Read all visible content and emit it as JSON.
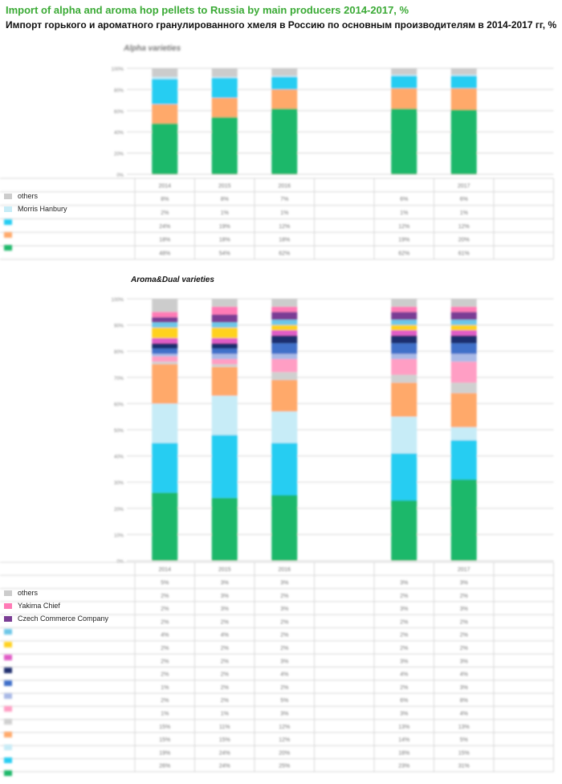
{
  "title_en": "Import of alpha and aroma hop pellets to Russia by main producers 2014-2017, %",
  "title_ru": "Импорт горького и ароматного гранулированного хмеля в Россию по основным производителям в 2014-2017 гг, %",
  "chart_data": [
    {
      "type": "bar",
      "stacked": true,
      "title": "Alpha varieties",
      "categories": [
        "2014",
        "2015",
        "2016",
        "",
        "",
        "2017",
        ""
      ],
      "ylim": [
        0,
        100
      ],
      "yticks": [
        "0%",
        "20%",
        "40%",
        "60%",
        "80%",
        "100%"
      ],
      "series": [
        {
          "name": "BarthHaas Group",
          "color": "#1db86a",
          "values": [
            48,
            54,
            62,
            null,
            62,
            61,
            null
          ]
        },
        {
          "name": "",
          "color": "#ffa96a",
          "values": [
            18,
            18,
            18,
            null,
            19,
            20,
            null
          ]
        },
        {
          "name": "",
          "color": "#25cdf2",
          "values": [
            24,
            19,
            12,
            null,
            12,
            12,
            null
          ]
        },
        {
          "name": "Morris Hanbury",
          "color": "#c7ecf7",
          "values": [
            2,
            1,
            1,
            null,
            1,
            1,
            null
          ]
        },
        {
          "name": "others",
          "color": "#cccccc",
          "values": [
            8,
            8,
            7,
            null,
            6,
            6,
            null
          ]
        }
      ]
    },
    {
      "type": "bar",
      "stacked": true,
      "title": "Aroma&Dual varieties",
      "categories": [
        "2014",
        "2015",
        "2016",
        "",
        "",
        "2017",
        ""
      ],
      "ylim": [
        0,
        100
      ],
      "yticks": [
        "0%",
        "10%",
        "20%",
        "30%",
        "40%",
        "50%",
        "60%",
        "70%",
        "80%",
        "90%",
        "100%"
      ],
      "series": [
        {
          "name": "BarthHaas Group",
          "color": "#1db86a",
          "values": [
            26,
            24,
            25,
            null,
            23,
            31,
            null
          ]
        },
        {
          "name": "",
          "color": "#25cdf2",
          "values": [
            19,
            24,
            20,
            null,
            18,
            15,
            null
          ]
        },
        {
          "name": "Morris Hanbury",
          "color": "#c7ecf7",
          "values": [
            15,
            15,
            12,
            null,
            14,
            5,
            null
          ]
        },
        {
          "name": "",
          "color": "#ffa96a",
          "values": [
            15,
            11,
            12,
            null,
            13,
            13,
            null
          ]
        },
        {
          "name": "",
          "color": "#d0d0d0",
          "values": [
            1,
            1,
            3,
            null,
            3,
            4,
            null
          ]
        },
        {
          "name": "",
          "color": "#ff9ec4",
          "values": [
            2,
            2,
            5,
            null,
            6,
            8,
            null
          ]
        },
        {
          "name": "",
          "color": "#a9b9e6",
          "values": [
            1,
            2,
            2,
            null,
            2,
            3,
            null
          ]
        },
        {
          "name": "",
          "color": "#3f6fc9",
          "values": [
            2,
            2,
            4,
            null,
            4,
            4,
            null
          ]
        },
        {
          "name": "",
          "color": "#1f2f6e",
          "values": [
            2,
            2,
            3,
            null,
            3,
            3,
            null
          ]
        },
        {
          "name": "",
          "color": "#e05bc6",
          "values": [
            2,
            2,
            2,
            null,
            2,
            2,
            null
          ]
        },
        {
          "name": "",
          "color": "#ffd21f",
          "values": [
            4,
            4,
            2,
            null,
            2,
            2,
            null
          ]
        },
        {
          "name": "",
          "color": "#6ec7e8",
          "values": [
            2,
            2,
            2,
            null,
            2,
            2,
            null
          ]
        },
        {
          "name": "Czech Commerce Company",
          "color": "#7a3d94",
          "values": [
            2,
            3,
            3,
            null,
            3,
            3,
            null
          ]
        },
        {
          "name": "Yakima Chief",
          "color": "#ff7ab6",
          "values": [
            2,
            3,
            2,
            null,
            2,
            2,
            null
          ]
        },
        {
          "name": "others",
          "color": "#cccccc",
          "values": [
            5,
            3,
            3,
            null,
            3,
            3,
            null
          ]
        }
      ]
    }
  ],
  "alpha_legend": [
    {
      "label": "others",
      "color": "#cccccc",
      "blurred": false
    },
    {
      "label": "Morris Hanbury",
      "color": "#c7ecf7",
      "blurred": false
    },
    {
      "label": "",
      "color": "#25cdf2",
      "blurred": true
    },
    {
      "label": "",
      "color": "#ffa96a",
      "blurred": true
    },
    {
      "label": "",
      "color": "#1db86a",
      "blurred": true
    }
  ],
  "aroma_legend": [
    {
      "label": "others",
      "color": "#cccccc",
      "blurred": false
    },
    {
      "label": "Yakima Chief",
      "color": "#ff7ab6",
      "blurred": false
    },
    {
      "label": "Czech Commerce Company",
      "color": "#7a3d94",
      "blurred": false
    },
    {
      "label": "",
      "color": "#6ec7e8",
      "blurred": true
    },
    {
      "label": "",
      "color": "#ffd21f",
      "blurred": true
    },
    {
      "label": "",
      "color": "#e05bc6",
      "blurred": true
    },
    {
      "label": "",
      "color": "#1f2f6e",
      "blurred": true
    },
    {
      "label": "",
      "color": "#3f6fc9",
      "blurred": true
    },
    {
      "label": "",
      "color": "#a9b9e6",
      "blurred": true
    },
    {
      "label": "",
      "color": "#ff9ec4",
      "blurred": true
    },
    {
      "label": "",
      "color": "#d0d0d0",
      "blurred": true
    },
    {
      "label": "",
      "color": "#ffa96a",
      "blurred": true
    },
    {
      "label": "",
      "color": "#c7ecf7",
      "blurred": true
    },
    {
      "label": "",
      "color": "#25cdf2",
      "blurred": true
    },
    {
      "label": "",
      "color": "#1db86a",
      "blurred": true
    }
  ]
}
